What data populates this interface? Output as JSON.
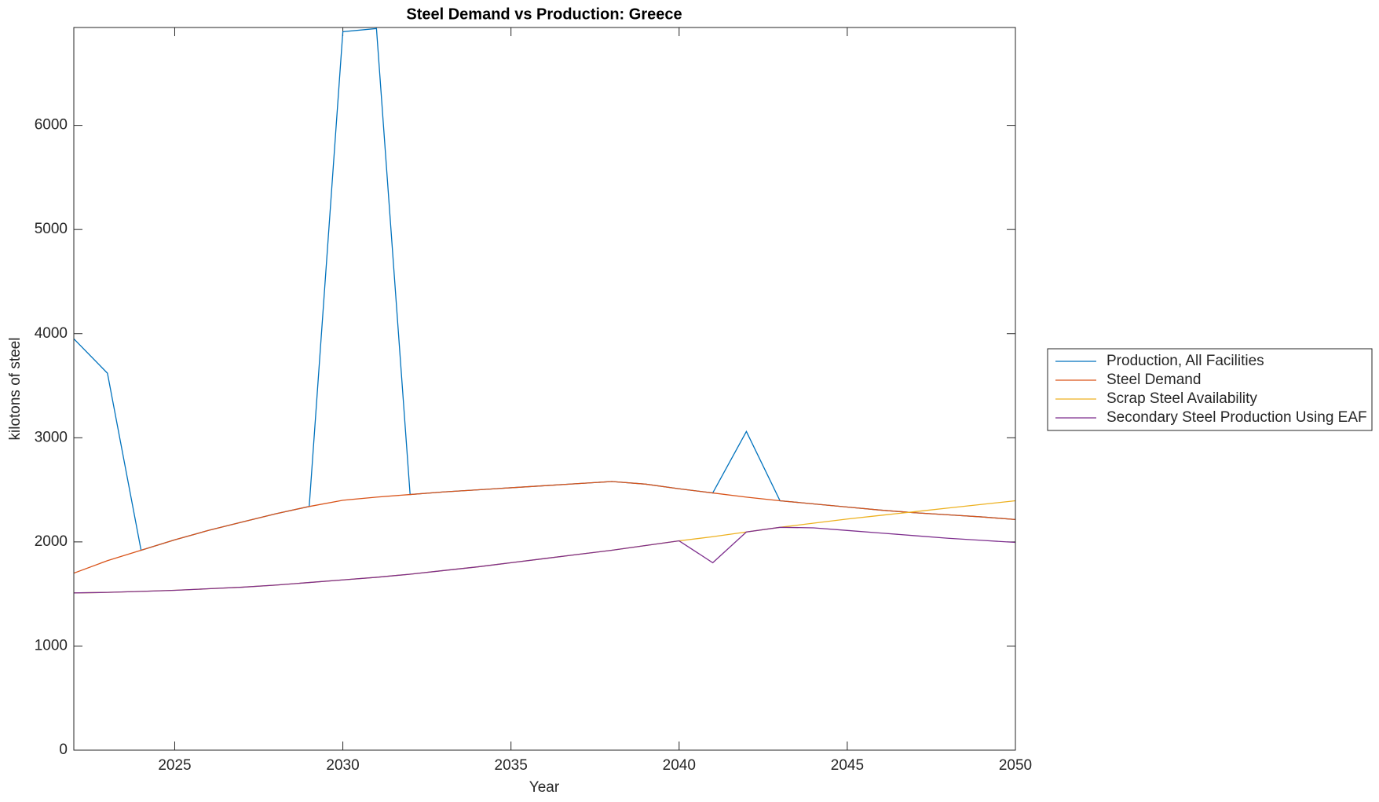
{
  "chart_data": {
    "type": "line",
    "title": "Steel Demand vs Production: Greece",
    "xlabel": "Year",
    "ylabel": "kilotons of steel",
    "x": [
      2022,
      2023,
      2024,
      2025,
      2026,
      2027,
      2028,
      2029,
      2030,
      2031,
      2032,
      2033,
      2034,
      2035,
      2036,
      2037,
      2038,
      2039,
      2040,
      2041,
      2042,
      2043,
      2044,
      2045,
      2046,
      2047,
      2048,
      2049,
      2050
    ],
    "series": [
      {
        "name": "Production, All Facilities",
        "color": "#0072BD",
        "values": [
          3950,
          3620,
          1920,
          2020,
          2110,
          2190,
          2270,
          2340,
          6900,
          6930,
          2455,
          2480,
          2500,
          2520,
          2540,
          2560,
          2580,
          2555,
          2510,
          2470,
          3060,
          2395,
          2365,
          2335,
          2305,
          2280,
          2260,
          2240,
          2215
        ]
      },
      {
        "name": "Steel Demand",
        "color": "#D95319",
        "values": [
          1700,
          1820,
          1920,
          2020,
          2110,
          2190,
          2270,
          2340,
          2400,
          2430,
          2455,
          2480,
          2500,
          2520,
          2540,
          2560,
          2580,
          2555,
          2510,
          2470,
          2430,
          2395,
          2365,
          2335,
          2305,
          2280,
          2260,
          2240,
          2215
        ]
      },
      {
        "name": "Scrap Steel Availability",
        "color": "#EDB120",
        "values": [
          1510,
          1515,
          1525,
          1535,
          1550,
          1565,
          1585,
          1610,
          1635,
          1660,
          1690,
          1725,
          1760,
          1800,
          1840,
          1880,
          1920,
          1965,
          2010,
          2050,
          2095,
          2140,
          2180,
          2220,
          2255,
          2290,
          2325,
          2360,
          2395
        ]
      },
      {
        "name": "Secondary Steel Production Using EAF",
        "color": "#7E2F8E",
        "values": [
          1510,
          1515,
          1525,
          1535,
          1550,
          1565,
          1585,
          1610,
          1635,
          1660,
          1690,
          1725,
          1760,
          1800,
          1840,
          1880,
          1920,
          1965,
          2010,
          1800,
          2095,
          2140,
          2135,
          2110,
          2085,
          2060,
          2035,
          2015,
          1995
        ]
      }
    ],
    "xlim": [
      2022,
      2050
    ],
    "xticks": [
      2025,
      2030,
      2035,
      2040,
      2045,
      2050
    ],
    "ylim": [
      0,
      6940
    ],
    "yticks": [
      0,
      1000,
      2000,
      3000,
      4000,
      5000,
      6000
    ],
    "grid": false,
    "legend_location": "eastoutside"
  }
}
